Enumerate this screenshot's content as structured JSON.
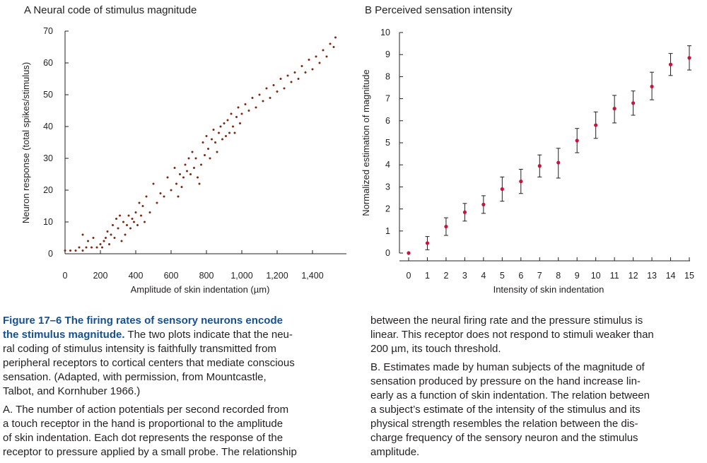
{
  "chart_data": [
    {
      "panel": "A",
      "title": "Neural code of stimulus magnitude",
      "type": "scatter",
      "xlabel": "Amplitude of skin indentation (µm)",
      "ylabel": "Neuron response (total spikes/stimulus)",
      "xlim": [
        0,
        1600
      ],
      "ylim": [
        0,
        70
      ],
      "xticks": [
        0,
        200,
        400,
        600,
        800,
        1000,
        1200,
        1400
      ],
      "xtick_labels": [
        "0",
        "200",
        "400",
        "600",
        "800",
        "1,000",
        "1,200",
        "1,400"
      ],
      "yticks": [
        0,
        10,
        20,
        30,
        40,
        50,
        60,
        70
      ],
      "marker_color": "#7a2a12",
      "series": [
        {
          "points": [
            [
              0,
              1
            ],
            [
              30,
              1
            ],
            [
              60,
              1
            ],
            [
              80,
              2
            ],
            [
              100,
              1
            ],
            [
              100,
              6
            ],
            [
              120,
              2
            ],
            [
              130,
              4
            ],
            [
              150,
              2
            ],
            [
              160,
              5
            ],
            [
              180,
              2
            ],
            [
              200,
              3
            ],
            [
              210,
              2
            ],
            [
              220,
              4
            ],
            [
              230,
              5
            ],
            [
              240,
              7
            ],
            [
              250,
              3
            ],
            [
              260,
              6
            ],
            [
              270,
              9
            ],
            [
              280,
              5
            ],
            [
              290,
              11
            ],
            [
              300,
              8
            ],
            [
              310,
              12
            ],
            [
              320,
              4
            ],
            [
              330,
              10
            ],
            [
              340,
              6
            ],
            [
              350,
              9
            ],
            [
              360,
              12
            ],
            [
              370,
              8
            ],
            [
              380,
              11
            ],
            [
              390,
              10
            ],
            [
              400,
              13
            ],
            [
              410,
              9
            ],
            [
              420,
              16
            ],
            [
              430,
              12
            ],
            [
              440,
              15
            ],
            [
              450,
              10
            ],
            [
              460,
              18
            ],
            [
              480,
              13
            ],
            [
              500,
              22
            ],
            [
              520,
              16
            ],
            [
              540,
              19
            ],
            [
              560,
              18
            ],
            [
              580,
              24
            ],
            [
              600,
              20
            ],
            [
              620,
              27
            ],
            [
              630,
              22
            ],
            [
              640,
              18
            ],
            [
              650,
              25
            ],
            [
              660,
              21
            ],
            [
              670,
              24
            ],
            [
              680,
              28
            ],
            [
              690,
              26
            ],
            [
              700,
              30
            ],
            [
              710,
              25
            ],
            [
              720,
              32
            ],
            [
              730,
              27
            ],
            [
              740,
              30
            ],
            [
              750,
              24
            ],
            [
              760,
              22
            ],
            [
              770,
              28
            ],
            [
              780,
              35
            ],
            [
              790,
              31
            ],
            [
              800,
              37
            ],
            [
              810,
              33
            ],
            [
              820,
              30
            ],
            [
              830,
              36
            ],
            [
              840,
              39
            ],
            [
              850,
              35
            ],
            [
              860,
              32
            ],
            [
              870,
              38
            ],
            [
              880,
              40
            ],
            [
              890,
              36
            ],
            [
              900,
              41
            ],
            [
              910,
              37
            ],
            [
              920,
              42
            ],
            [
              930,
              38
            ],
            [
              940,
              44
            ],
            [
              950,
              40
            ],
            [
              960,
              38
            ],
            [
              970,
              43
            ],
            [
              980,
              46
            ],
            [
              990,
              41
            ],
            [
              1000,
              44
            ],
            [
              1020,
              47
            ],
            [
              1040,
              45
            ],
            [
              1060,
              49
            ],
            [
              1080,
              46
            ],
            [
              1100,
              50
            ],
            [
              1120,
              48
            ],
            [
              1140,
              52
            ],
            [
              1160,
              49
            ],
            [
              1180,
              53
            ],
            [
              1200,
              51
            ],
            [
              1220,
              55
            ],
            [
              1240,
              52
            ],
            [
              1260,
              56
            ],
            [
              1280,
              54
            ],
            [
              1300,
              57
            ],
            [
              1320,
              55
            ],
            [
              1340,
              59
            ],
            [
              1360,
              57
            ],
            [
              1380,
              61
            ],
            [
              1400,
              58
            ],
            [
              1420,
              62
            ],
            [
              1440,
              60
            ],
            [
              1460,
              64
            ],
            [
              1480,
              62
            ],
            [
              1500,
              66
            ],
            [
              1520,
              65
            ],
            [
              1530,
              68
            ]
          ]
        }
      ]
    },
    {
      "panel": "B",
      "title": "Perceived sensation intensity",
      "type": "scatter",
      "xlabel": "Intensity of skin indentation",
      "ylabel": "Normalized estimation of magnitude",
      "xlim": [
        0,
        15
      ],
      "ylim": [
        0,
        10
      ],
      "xticks": [
        0,
        1,
        2,
        3,
        4,
        5,
        6,
        7,
        8,
        9,
        10,
        11,
        12,
        13,
        14,
        15
      ],
      "yticks": [
        0,
        1,
        2,
        3,
        4,
        5,
        6,
        7,
        8,
        9,
        10
      ],
      "marker_color": "#c8143c",
      "series": [
        {
          "x": [
            0,
            1,
            2,
            3,
            4,
            5,
            6,
            7,
            8,
            9,
            10,
            11,
            12,
            13,
            14,
            15
          ],
          "y": [
            0,
            0.45,
            1.2,
            1.85,
            2.2,
            2.9,
            3.25,
            3.95,
            4.1,
            5.1,
            5.8,
            6.55,
            6.8,
            7.55,
            8.55,
            8.85
          ],
          "err_low": [
            0,
            0.15,
            0.8,
            1.45,
            1.8,
            2.35,
            2.7,
            3.45,
            3.4,
            4.55,
            5.2,
            5.9,
            6.25,
            6.95,
            8.05,
            8.3
          ],
          "err_high": [
            0,
            0.75,
            1.6,
            2.25,
            2.6,
            3.45,
            3.8,
            4.45,
            4.75,
            5.65,
            6.4,
            7.15,
            7.35,
            8.2,
            9.05,
            9.4
          ]
        }
      ]
    }
  ],
  "caption": {
    "figure_label": "Figure 17–6",
    "bold_title": "The firing rates of sensory neurons encode the stimulus magnitude.",
    "intro_lines": [
      "the stimulus magnitude. The two plots indicate that the neu-",
      "ral coding of stimulus intensity is faithfully transmitted from",
      "peripheral receptors to cortical centers that mediate conscious",
      "sensation. (Adapted, with permission, from Mountcastle,",
      "Talbot, and Kornhuber 1966.)"
    ],
    "para_a_lines": [
      "A. The number of action potentials per second recorded from",
      "a touch receptor in the hand is proportional to the amplitude",
      "of skin indentation. Each dot represents the response of the",
      "receptor to pressure applied by a small probe. The relationship"
    ],
    "para_a_cont_lines": [
      "between the neural firing rate and the pressure stimulus is",
      "linear. This receptor does not respond to stimuli weaker than",
      "200 µm, its touch threshold."
    ],
    "para_b_lines": [
      "B. Estimates made by human subjects of the magnitude of",
      "sensation produced by pressure on the hand increase lin-",
      "early as a function of skin indentation. The relation between",
      "a subject’s estimate of the intensity of the stimulus and its",
      "physical strength resembles the relation between the dis-",
      "charge frequency of the sensory neuron and the stimulus",
      "amplitude."
    ]
  }
}
